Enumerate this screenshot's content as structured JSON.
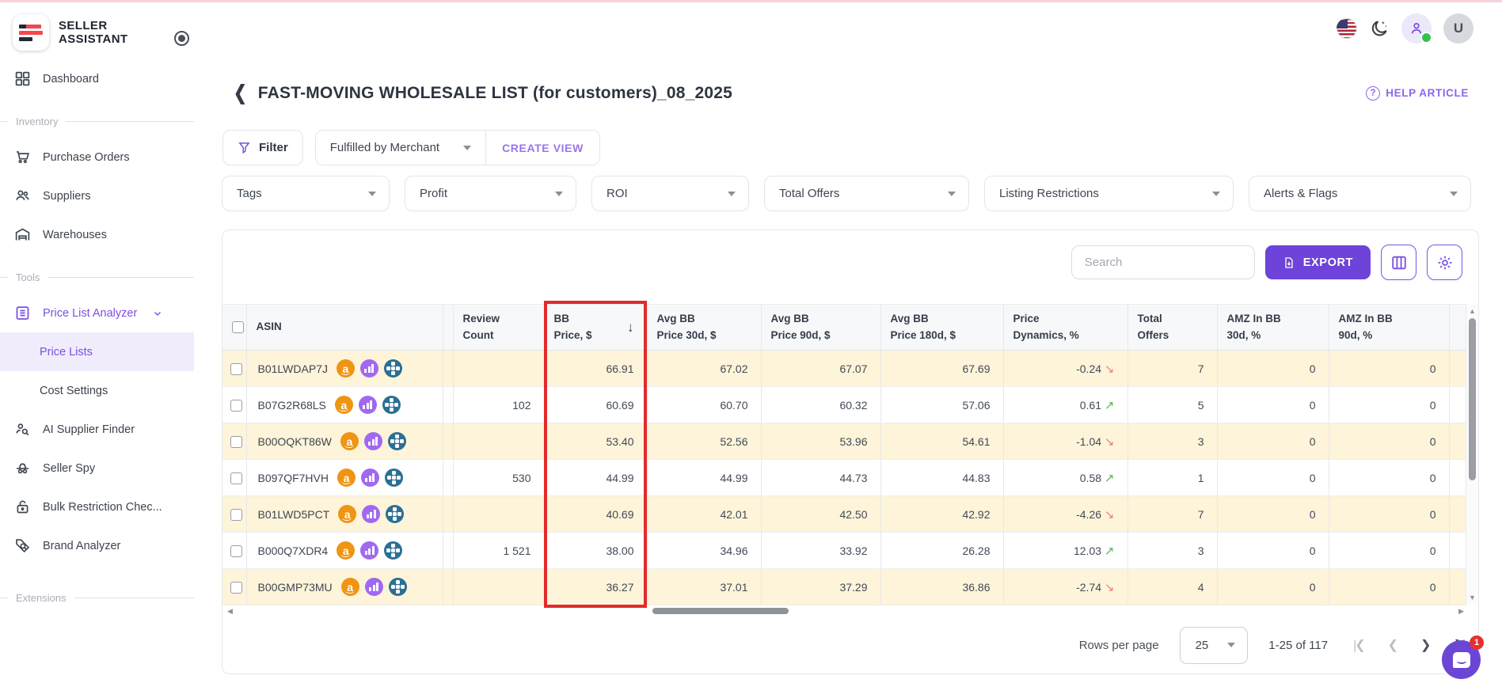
{
  "topbar": {
    "brand_line1": "SELLER",
    "brand_line2": "ASSISTANT",
    "avatar_initial": "U"
  },
  "sidebar": {
    "dashboard": "Dashboard",
    "sections": {
      "inventory": "Inventory",
      "tools": "Tools",
      "extensions": "Extensions"
    },
    "inventory_items": [
      {
        "label": "Purchase Orders",
        "icon": "cart-icon"
      },
      {
        "label": "Suppliers",
        "icon": "people-icon"
      },
      {
        "label": "Warehouses",
        "icon": "warehouse-icon"
      }
    ],
    "tools_items": [
      {
        "label": "Price List Analyzer",
        "icon": "list-icon"
      },
      {
        "label": "Price Lists"
      },
      {
        "label": "Cost Settings"
      },
      {
        "label": "AI Supplier Finder",
        "icon": "person-search-icon"
      },
      {
        "label": "Seller Spy",
        "icon": "spy-icon"
      },
      {
        "label": "Bulk Restriction Chec...",
        "icon": "lock-icon"
      },
      {
        "label": "Brand Analyzer",
        "icon": "tag-search-icon"
      }
    ]
  },
  "page": {
    "title": "FAST-MOVING WHOLESALE LIST (for customers)_08_2025",
    "help_link": "HELP ARTICLE"
  },
  "filters": {
    "filter_button": "Filter",
    "view_dropdown": "Fulfilled by Merchant",
    "create_view": "CREATE VIEW",
    "dropdowns": [
      "Tags",
      "Profit",
      "ROI",
      "Total Offers",
      "Listing Restrictions",
      "Alerts & Flags"
    ]
  },
  "toolbar": {
    "search_placeholder": "Search",
    "export_label": "EXPORT"
  },
  "table": {
    "columns": [
      {
        "id": "check",
        "l1": "",
        "l2": ""
      },
      {
        "id": "asin",
        "l1": "ASIN",
        "l2": ""
      },
      {
        "id": "spacer",
        "l1": "",
        "l2": ""
      },
      {
        "id": "review",
        "l1": "Review",
        "l2": "Count"
      },
      {
        "id": "bb",
        "l1": "BB",
        "l2": "Price, $",
        "sorted": "desc"
      },
      {
        "id": "avg30",
        "l1": "Avg BB",
        "l2": "Price 30d, $"
      },
      {
        "id": "avg90",
        "l1": "Avg BB",
        "l2": "Price 90d, $"
      },
      {
        "id": "avg180",
        "l1": "Avg BB",
        "l2": "Price 180d, $"
      },
      {
        "id": "dyn",
        "l1": "Price",
        "l2": "Dynamics, %"
      },
      {
        "id": "offers",
        "l1": "Total",
        "l2": "Offers"
      },
      {
        "id": "amz30",
        "l1": "AMZ In BB",
        "l2": "30d, %"
      },
      {
        "id": "amz90",
        "l1": "AMZ In BB",
        "l2": "90d, %"
      },
      {
        "id": "sliver",
        "l1": "",
        "l2": ""
      }
    ],
    "row_icon_names": [
      "amazon-icon",
      "keepa-chart-icon",
      "sas-pinwheel-icon"
    ],
    "rows": [
      {
        "asin": "B01LWDAP7J",
        "review": "",
        "bb": "66.91",
        "avg30": "67.02",
        "avg90": "67.07",
        "avg180": "67.69",
        "dyn": "-0.24",
        "trend": "down",
        "offers": "7",
        "amz30": "0",
        "amz90": "0"
      },
      {
        "asin": "B07G2R68LS",
        "review": "102",
        "bb": "60.69",
        "avg30": "60.70",
        "avg90": "60.32",
        "avg180": "57.06",
        "dyn": "0.61",
        "trend": "up",
        "offers": "5",
        "amz30": "0",
        "amz90": "0"
      },
      {
        "asin": "B00OQKT86W",
        "review": "",
        "bb": "53.40",
        "avg30": "52.56",
        "avg90": "53.96",
        "avg180": "54.61",
        "dyn": "-1.04",
        "trend": "down",
        "offers": "3",
        "amz30": "0",
        "amz90": "0"
      },
      {
        "asin": "B097QF7HVH",
        "review": "530",
        "bb": "44.99",
        "avg30": "44.99",
        "avg90": "44.73",
        "avg180": "44.83",
        "dyn": "0.58",
        "trend": "up",
        "offers": "1",
        "amz30": "0",
        "amz90": "0"
      },
      {
        "asin": "B01LWD5PCT",
        "review": "",
        "bb": "40.69",
        "avg30": "42.01",
        "avg90": "42.50",
        "avg180": "42.92",
        "dyn": "-4.26",
        "trend": "down",
        "offers": "7",
        "amz30": "0",
        "amz90": "0"
      },
      {
        "asin": "B000Q7XDR4",
        "review": "1 521",
        "bb": "38.00",
        "avg30": "34.96",
        "avg90": "33.92",
        "avg180": "26.28",
        "dyn": "12.03",
        "trend": "up",
        "offers": "3",
        "amz30": "0",
        "amz90": "0"
      },
      {
        "asin": "B00GMP73MU",
        "review": "",
        "bb": "36.27",
        "avg30": "37.01",
        "avg90": "37.29",
        "avg180": "36.86",
        "dyn": "-2.74",
        "trend": "down",
        "offers": "4",
        "amz30": "0",
        "amz90": "0"
      }
    ]
  },
  "pagination": {
    "label": "Rows per page",
    "page_size": "25",
    "range": "1-25 of 117"
  },
  "chat": {
    "badge": "1"
  },
  "colors": {
    "accent": "#6d43d9",
    "accent_text": "#8e66e8",
    "row_stripe": "#fdf4d9",
    "highlight_border": "#e22b2b",
    "positive": "#56b44c",
    "negative": "#f07d74",
    "logo_red": "#f5484d",
    "logo_dark": "#232838"
  }
}
